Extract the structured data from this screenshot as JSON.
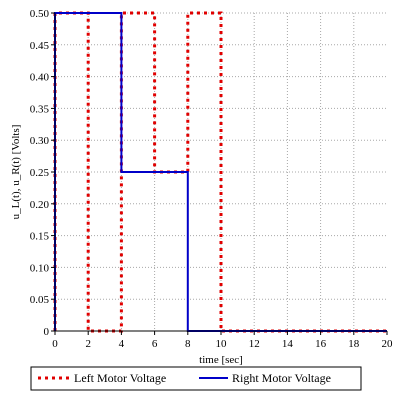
{
  "chart_data": {
    "type": "line",
    "xlabel": "time [sec]",
    "ylabel": "u_L(t), u_R(t) [Volts]",
    "xlim": [
      0,
      20
    ],
    "ylim": [
      0,
      0.5
    ],
    "x_ticks": [
      "0",
      "2",
      "4",
      "6",
      "8",
      "10",
      "12",
      "14",
      "16",
      "18",
      "20"
    ],
    "y_ticks": [
      "0",
      "0.05",
      "0.10",
      "0.15",
      "0.20",
      "0.25",
      "0.30",
      "0.35",
      "0.40",
      "0.45",
      "0.50"
    ],
    "grid": true,
    "legend_position": "bottom",
    "series": [
      {
        "name": "Left Motor Voltage",
        "color": "#e00000",
        "style": "dotted",
        "points": [
          [
            0,
            0
          ],
          [
            0,
            0.5
          ],
          [
            2,
            0.5
          ],
          [
            2,
            0
          ],
          [
            4,
            0
          ],
          [
            4,
            0.5
          ],
          [
            6,
            0.5
          ],
          [
            6,
            0.25
          ],
          [
            8,
            0.25
          ],
          [
            8,
            0.5
          ],
          [
            10,
            0.5
          ],
          [
            10,
            0
          ],
          [
            20,
            0
          ]
        ]
      },
      {
        "name": "Right Motor Voltage",
        "color": "#0000c8",
        "style": "solid",
        "points": [
          [
            0,
            0
          ],
          [
            0,
            0.5
          ],
          [
            4,
            0.5
          ],
          [
            4,
            0.25
          ],
          [
            8,
            0.25
          ],
          [
            8,
            0
          ],
          [
            20,
            0
          ]
        ]
      }
    ]
  }
}
